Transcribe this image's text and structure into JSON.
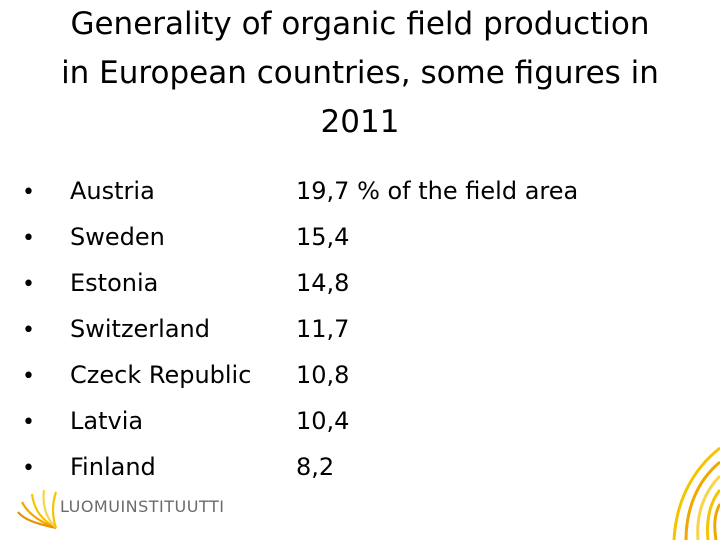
{
  "title": {
    "line1": "Generality of organic field production",
    "line2": "in  European countries, some figures in",
    "line3": "2011"
  },
  "rows": [
    {
      "country": "Austria",
      "value": "19,7 % of the field area"
    },
    {
      "country": "Sweden",
      "value": "15,4"
    },
    {
      "country": "Estonia",
      "value": "14,8"
    },
    {
      "country": "Switzerland",
      "value": "11,7"
    },
    {
      "country": "Czeck Republic",
      "value": "10,8"
    },
    {
      "country": "Latvia",
      "value": "10,4"
    },
    {
      "country": "Finland",
      "value": "8,2"
    }
  ],
  "bullet": "•",
  "logo": {
    "text": "LUOMUINSTITUUTTI",
    "colors": [
      "#f5c400",
      "#f0a800",
      "#e89000"
    ]
  },
  "corner_decoration": {
    "colors": [
      "#f5c400",
      "#f0a800",
      "#f7d54a"
    ]
  }
}
